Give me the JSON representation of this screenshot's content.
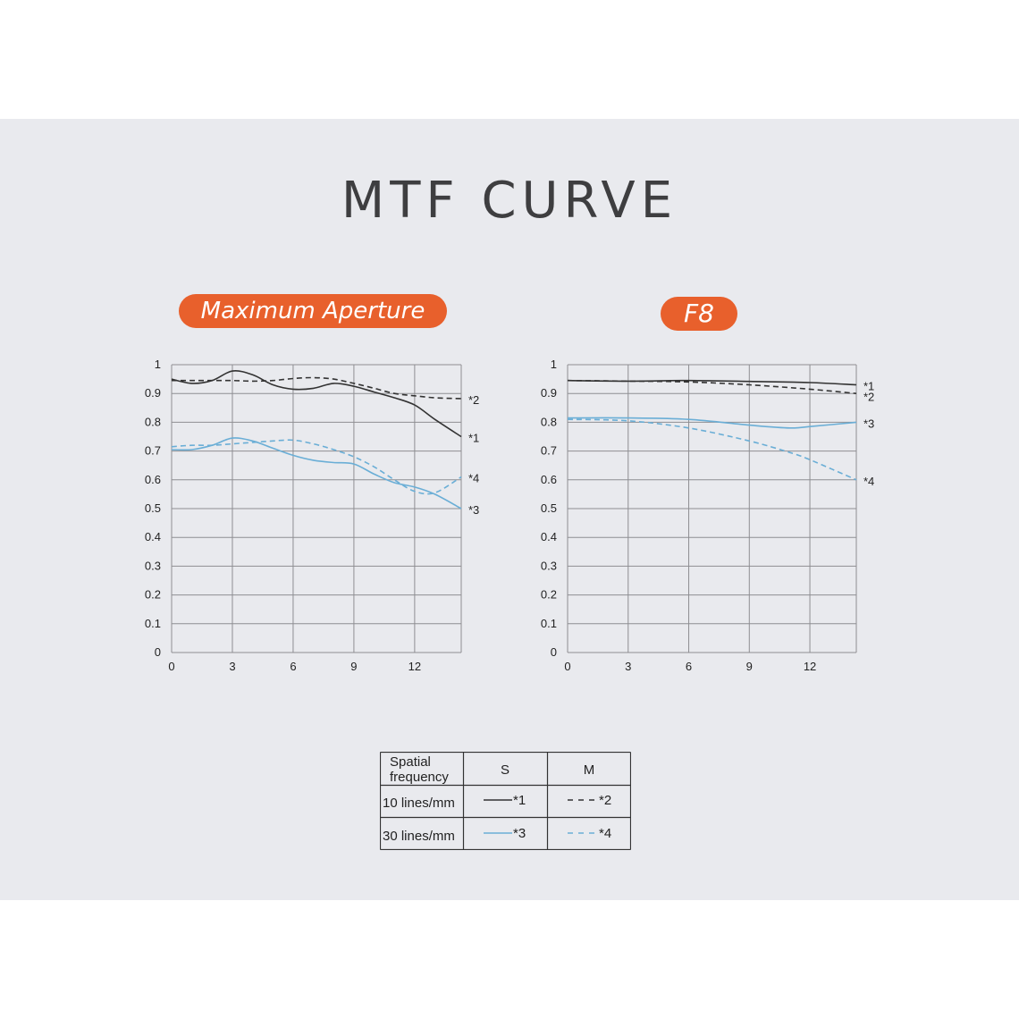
{
  "title": "MTF CURVE",
  "chart_data": [
    {
      "type": "line",
      "label": "Maximum Aperture",
      "xlim": [
        0,
        14.3
      ],
      "ylim": [
        0,
        1
      ],
      "x_ticks": [
        "0",
        "3",
        "6",
        "9",
        "12"
      ],
      "y_ticks": [
        "0",
        "0.1",
        "0.2",
        "0.3",
        "0.4",
        "0.5",
        "0.6",
        "0.7",
        "0.8",
        "0.9",
        "1"
      ],
      "grid": true,
      "series": [
        {
          "name": "*1",
          "dashed": false,
          "color": "#333333",
          "x": [
            0,
            1,
            2,
            3,
            4,
            5,
            6,
            7,
            8,
            9,
            10,
            11,
            12,
            13,
            14.3
          ],
          "y": [
            0.95,
            0.935,
            0.945,
            0.978,
            0.965,
            0.93,
            0.915,
            0.918,
            0.935,
            0.925,
            0.905,
            0.885,
            0.86,
            0.81,
            0.75
          ]
        },
        {
          "name": "*2",
          "dashed": true,
          "color": "#333333",
          "x": [
            0,
            1,
            2,
            3,
            4,
            5,
            6,
            7,
            8,
            9,
            10,
            11,
            12,
            13,
            14.3
          ],
          "y": [
            0.945,
            0.945,
            0.945,
            0.945,
            0.943,
            0.945,
            0.952,
            0.955,
            0.95,
            0.935,
            0.918,
            0.9,
            0.892,
            0.885,
            0.882
          ]
        },
        {
          "name": "*3",
          "dashed": false,
          "color": "#6aaed6",
          "x": [
            0,
            1,
            2,
            3,
            4,
            5,
            6,
            7,
            8,
            9,
            10,
            11,
            12,
            13,
            14.3
          ],
          "y": [
            0.705,
            0.705,
            0.72,
            0.745,
            0.735,
            0.71,
            0.685,
            0.668,
            0.66,
            0.655,
            0.62,
            0.59,
            0.575,
            0.55,
            0.5
          ]
        },
        {
          "name": "*4",
          "dashed": true,
          "color": "#6aaed6",
          "x": [
            0,
            1,
            2,
            3,
            4,
            5,
            6,
            7,
            8,
            9,
            10,
            11,
            12,
            13,
            14.3
          ],
          "y": [
            0.715,
            0.72,
            0.72,
            0.725,
            0.73,
            0.735,
            0.738,
            0.725,
            0.705,
            0.68,
            0.645,
            0.6,
            0.56,
            0.555,
            0.61
          ]
        }
      ]
    },
    {
      "type": "line",
      "label": "F8",
      "xlim": [
        0,
        14.3
      ],
      "ylim": [
        0,
        1
      ],
      "x_ticks": [
        "0",
        "3",
        "6",
        "9",
        "12"
      ],
      "y_ticks": [
        "0",
        "0.1",
        "0.2",
        "0.3",
        "0.4",
        "0.5",
        "0.6",
        "0.7",
        "0.8",
        "0.9",
        "1"
      ],
      "grid": true,
      "series": [
        {
          "name": "*1",
          "dashed": false,
          "color": "#333333",
          "x": [
            0,
            3,
            6,
            9,
            12,
            14.3
          ],
          "y": [
            0.945,
            0.943,
            0.945,
            0.942,
            0.938,
            0.93
          ]
        },
        {
          "name": "*2",
          "dashed": true,
          "color": "#333333",
          "x": [
            0,
            3,
            6,
            9,
            12,
            14.3
          ],
          "y": [
            0.945,
            0.943,
            0.94,
            0.93,
            0.915,
            0.9
          ]
        },
        {
          "name": "*3",
          "dashed": false,
          "color": "#6aaed6",
          "x": [
            0,
            3,
            6,
            9,
            11,
            12,
            14.3
          ],
          "y": [
            0.815,
            0.815,
            0.81,
            0.79,
            0.78,
            0.785,
            0.8
          ]
        },
        {
          "name": "*4",
          "dashed": true,
          "color": "#6aaed6",
          "x": [
            0,
            3,
            6,
            9,
            11,
            12,
            14.3
          ],
          "y": [
            0.81,
            0.805,
            0.78,
            0.735,
            0.695,
            0.67,
            0.6
          ]
        }
      ]
    }
  ],
  "legend": {
    "header": {
      "col0": "Spatial frequency",
      "col0_line1": "Spatial",
      "col0_line2": "frequency",
      "col1": "S",
      "col2": "M"
    },
    "rows": [
      {
        "label": "10 lines/mm",
        "s": "*1",
        "m": "*2",
        "color": "#333333"
      },
      {
        "label": "30 lines/mm",
        "s": "*3",
        "m": "*4",
        "color": "#6aaed6"
      }
    ]
  }
}
